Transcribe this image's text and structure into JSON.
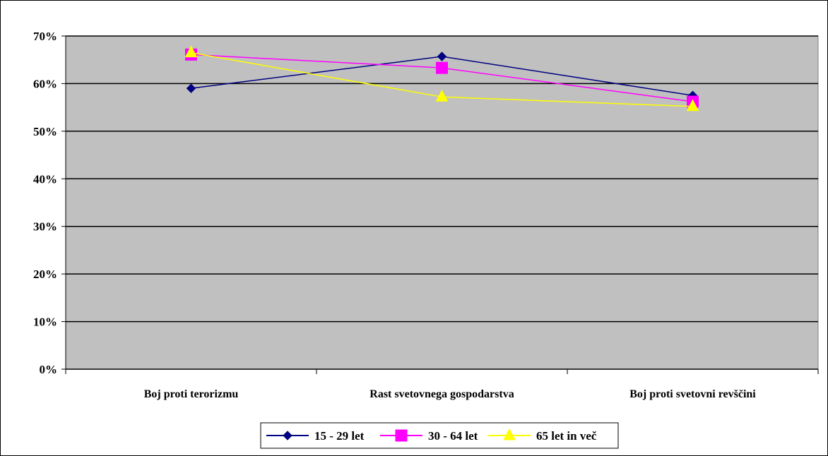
{
  "chart_data": {
    "type": "line",
    "title": "",
    "xlabel": "",
    "ylabel": "",
    "categories": [
      "Boj proti terorizmu",
      "Rast svetovnega gospodarstva",
      "Boj proti svetovni revščini"
    ],
    "ylim": [
      0,
      0.7
    ],
    "yticks": [
      0,
      0.1,
      0.2,
      0.3,
      0.4,
      0.5,
      0.6,
      0.7
    ],
    "ytick_labels": [
      "0%",
      "10%",
      "20%",
      "30%",
      "40%",
      "50%",
      "60%",
      "70%"
    ],
    "grid": true,
    "legend_position": "bottom",
    "plot_background": "#c0c0c0",
    "series": [
      {
        "name": "15 - 29 let",
        "values": [
          0.59,
          0.657,
          0.575
        ],
        "color": "#000080",
        "marker": "diamond"
      },
      {
        "name": "30 - 64 let",
        "values": [
          0.661,
          0.633,
          0.562
        ],
        "color": "#ff00ff",
        "marker": "square"
      },
      {
        "name": "65 let in več",
        "values": [
          0.665,
          0.572,
          0.552
        ],
        "color": "#ffff00",
        "marker": "triangle"
      }
    ]
  }
}
